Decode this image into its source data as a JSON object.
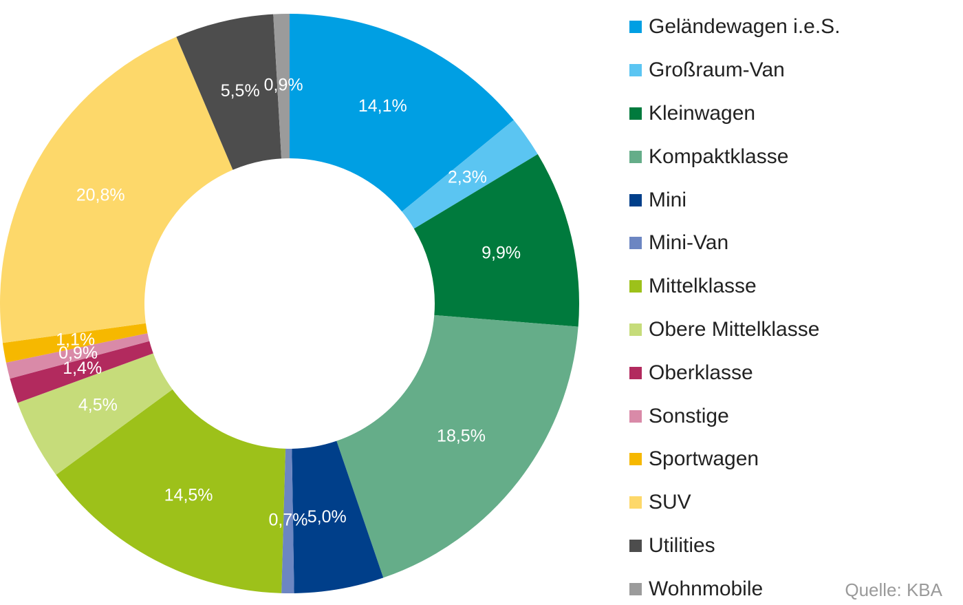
{
  "chart_data": {
    "type": "pie",
    "donut": true,
    "categories": [
      "Geländewagen i.e.S.",
      "Großraum-Van",
      "Kleinwagen",
      "Kompaktklasse",
      "Mini",
      "Mini-Van",
      "Mittelklasse",
      "Obere Mittelklasse",
      "Oberklasse",
      "Sonstige",
      "Sportwagen",
      "SUV",
      "Utilities",
      "Wohnmobile"
    ],
    "values": [
      14.1,
      2.3,
      9.9,
      18.5,
      5.0,
      0.7,
      14.5,
      4.5,
      1.4,
      0.9,
      1.1,
      20.8,
      5.5,
      0.9
    ],
    "value_labels": [
      "14,1%",
      "2,3%",
      "9,9%",
      "18,5%",
      "5,0%",
      "0,7%",
      "14,5%",
      "4,5%",
      "1,4%",
      "0,9%",
      "1,1%",
      "20,8%",
      "5,5%",
      "0,9%"
    ],
    "colors": [
      "#009fe3",
      "#5bc5f2",
      "#007a3d",
      "#65ad89",
      "#003f8a",
      "#6c86c2",
      "#9dc11a",
      "#c6dc7a",
      "#b22a5e",
      "#d98aa8",
      "#f6b800",
      "#fdd86a",
      "#4d4d4d",
      "#9b9b9b"
    ],
    "unit": "%",
    "legend_position": "right",
    "source": "Quelle: KBA"
  }
}
